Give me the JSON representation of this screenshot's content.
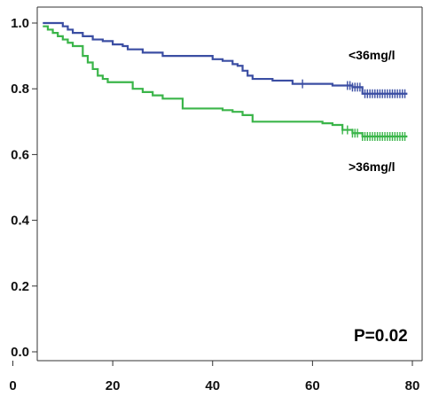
{
  "chart_data": {
    "type": "line",
    "title": "",
    "xlabel": "",
    "ylabel": "",
    "xlim": [
      0,
      80
    ],
    "ylim": [
      0,
      1.0
    ],
    "x_ticks": [
      "0",
      "20",
      "40",
      "60",
      "80"
    ],
    "y_ticks": [
      "0.0",
      "0.2",
      "0.4",
      "0.6",
      "0.8",
      "1.0"
    ],
    "grid": false,
    "annotation": "P=0.02",
    "series": [
      {
        "name": "<36mg/l",
        "color": "#3b4ea3",
        "x": [
          6,
          9,
          10,
          11,
          12,
          14,
          16,
          18,
          20,
          22,
          23,
          26,
          30,
          34,
          38,
          40,
          42,
          44,
          45,
          46,
          47,
          48,
          50,
          52,
          54,
          56,
          58,
          60,
          64,
          66,
          68,
          70,
          72,
          74,
          76,
          78,
          79
        ],
        "y": [
          1.0,
          1.0,
          0.99,
          0.98,
          0.97,
          0.96,
          0.95,
          0.945,
          0.935,
          0.93,
          0.92,
          0.91,
          0.9,
          0.9,
          0.9,
          0.89,
          0.885,
          0.875,
          0.87,
          0.855,
          0.84,
          0.83,
          0.83,
          0.825,
          0.825,
          0.815,
          0.815,
          0.815,
          0.81,
          0.81,
          0.805,
          0.785,
          0.785,
          0.785,
          0.785,
          0.785,
          0.785
        ],
        "censored_x": [
          58,
          67,
          67.5,
          68,
          68.5,
          69,
          69.5,
          70.5,
          71,
          71.5,
          72,
          72.5,
          73,
          73.5,
          74,
          74.5,
          75,
          75.5,
          76,
          76.5,
          77,
          77.5,
          78,
          78.5
        ]
      },
      {
        "name": ">36mg/l",
        "color": "#3bb54a",
        "x": [
          6,
          7,
          8,
          9,
          10,
          11,
          12,
          14,
          15,
          16,
          17,
          18,
          19,
          20,
          22,
          24,
          26,
          28,
          30,
          34,
          38,
          40,
          42,
          44,
          46,
          48,
          52,
          56,
          60,
          62,
          64,
          66,
          68,
          70,
          72,
          74,
          76,
          78,
          79
        ],
        "y": [
          0.99,
          0.98,
          0.97,
          0.96,
          0.95,
          0.94,
          0.93,
          0.9,
          0.88,
          0.86,
          0.84,
          0.83,
          0.82,
          0.82,
          0.82,
          0.8,
          0.79,
          0.78,
          0.77,
          0.74,
          0.74,
          0.74,
          0.735,
          0.73,
          0.72,
          0.7,
          0.7,
          0.7,
          0.7,
          0.695,
          0.69,
          0.675,
          0.665,
          0.655,
          0.655,
          0.655,
          0.655,
          0.655,
          0.655
        ],
        "censored_x": [
          66,
          67,
          68,
          68.5,
          69,
          70,
          70.5,
          71,
          71.5,
          72,
          72.5,
          73,
          73.5,
          74,
          74.5,
          75,
          75.5,
          76,
          76.5,
          77,
          77.5,
          78,
          78.5
        ]
      }
    ]
  }
}
